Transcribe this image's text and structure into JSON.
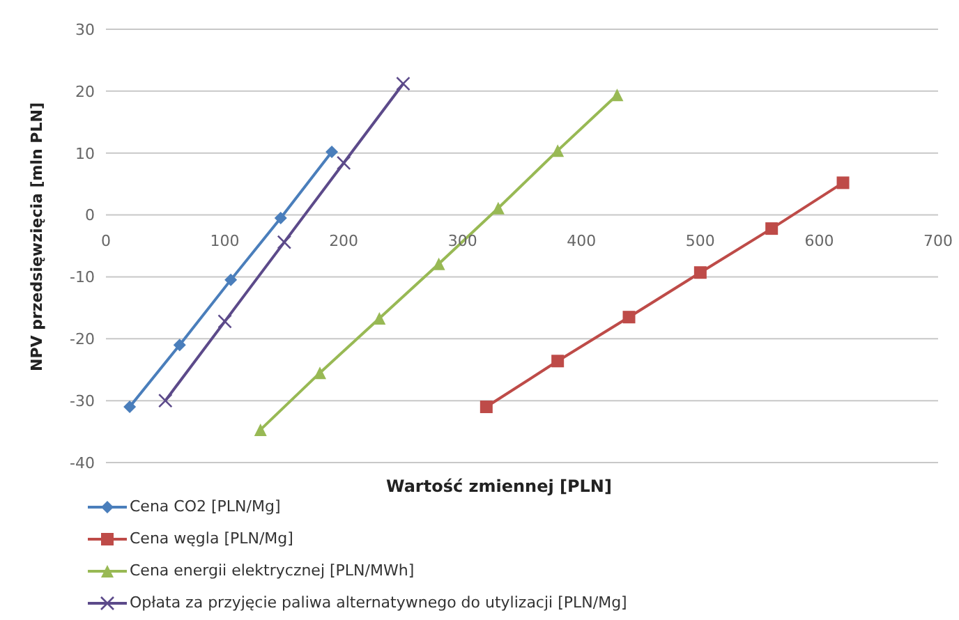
{
  "chart_data": {
    "type": "line",
    "xlabel": "Wartość zmiennej [PLN]",
    "ylabel": "NPV przedsięwzięcia [mln PLN]",
    "xlim": [
      0,
      700
    ],
    "xticks": [
      0,
      100,
      200,
      300,
      400,
      500,
      600,
      700
    ],
    "ylim": [
      -40,
      30
    ],
    "yticks": [
      -40,
      -30,
      -20,
      -10,
      0,
      10,
      20,
      30
    ],
    "grid": "y",
    "legend": "bottom",
    "series": [
      {
        "name": "Cena CO2 [PLN/Mg]",
        "color": "#4a7ebb",
        "marker": "diamond",
        "x": [
          20,
          62,
          105,
          147,
          190
        ],
        "values": [
          -31,
          -21,
          -10.5,
          -0.5,
          10.2
        ]
      },
      {
        "name": "Cena węgla [PLN/Mg]",
        "color": "#be4b48",
        "marker": "square",
        "x": [
          320,
          380,
          440,
          500,
          560,
          620
        ],
        "values": [
          -31,
          -23.6,
          -16.5,
          -9.3,
          -2.2,
          5.2
        ]
      },
      {
        "name": "Cena energii elektrycznej [PLN/MWh]",
        "color": "#98b954",
        "marker": "triangle",
        "x": [
          130,
          180,
          230,
          280,
          330,
          380,
          430
        ],
        "values": [
          -34.7,
          -25.5,
          -16.7,
          -7.9,
          1.1,
          10.4,
          19.4
        ]
      },
      {
        "name": "Opłata za przyjęcie paliwa alternatywnego do utylizacji [PLN/Mg]",
        "color": "#5c4a8a",
        "marker": "cross",
        "x": [
          50,
          100,
          150,
          200,
          250
        ],
        "values": [
          -30,
          -17.2,
          -4.4,
          8.4,
          21.2
        ]
      }
    ]
  }
}
